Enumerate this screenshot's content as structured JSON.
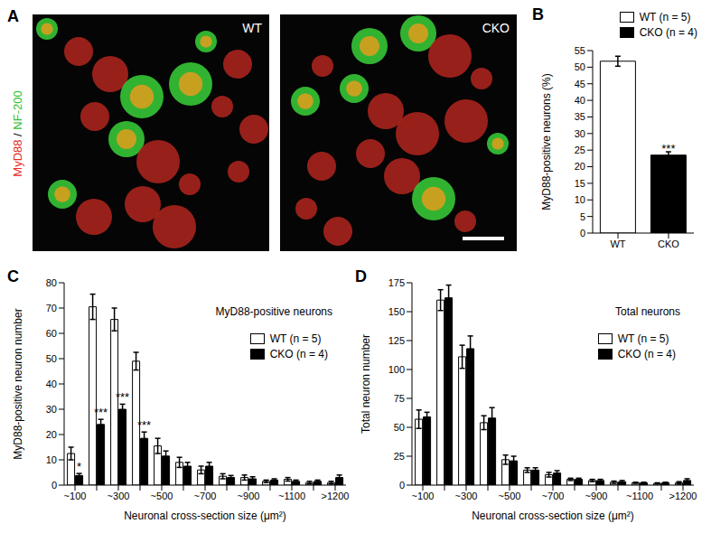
{
  "image_panel": {
    "panel": "A",
    "images": [
      "WT",
      "CKO"
    ],
    "stain_label": {
      "parts": [
        "MyD88",
        " / ",
        "NF-200"
      ],
      "colors": [
        "#e8261c",
        "#000000",
        "#2fbf2f"
      ]
    }
  },
  "chart_data": [
    {
      "panel": "B",
      "type": "bar",
      "categories": [
        "WT",
        "CKO"
      ],
      "stacked": true,
      "series": [
        {
          "name": "WT (n = 5)",
          "color": "#ffffff",
          "values": [
            51.8,
            null
          ],
          "errors": [
            1.5,
            null
          ]
        },
        {
          "name": "CKO (n = 4)",
          "color": "#000000",
          "values": [
            null,
            23.5
          ],
          "errors": [
            null,
            1.0
          ]
        }
      ],
      "ylabel": "MyD88-positive neurons (%)",
      "ylim": [
        0,
        55
      ],
      "yticks": [
        0,
        5,
        10,
        15,
        20,
        25,
        30,
        35,
        40,
        45,
        50,
        55
      ],
      "legend": "upper right",
      "annotations": [
        {
          "position": 1,
          "series": "CKO (n = 4)",
          "text": "***"
        }
      ]
    },
    {
      "panel": "C",
      "type": "bar",
      "title": "MyD88-positive neurons",
      "categories": [
        "~100",
        null,
        "~300",
        null,
        "~500",
        null,
        "~700",
        null,
        "~900",
        null,
        "~1100",
        null,
        ">1200"
      ],
      "series": [
        {
          "name": "WT (n = 5)",
          "color": "#ffffff",
          "values": [
            12.5,
            70.5,
            65.5,
            49,
            15.5,
            9,
            6,
            3.5,
            3,
            1.5,
            2.3,
            1,
            1
          ],
          "errors": [
            2.5,
            5,
            4.5,
            3.5,
            3,
            2,
            1.5,
            1,
            1,
            0.5,
            0.7,
            0.5,
            0.5
          ]
        },
        {
          "name": "CKO (n = 4)",
          "color": "#000000",
          "values": [
            3.8,
            24,
            30,
            18.5,
            11.5,
            7.5,
            7.5,
            3,
            2.5,
            2,
            1.5,
            1.5,
            3
          ],
          "errors": [
            0.8,
            2,
            2,
            2.5,
            2,
            1.5,
            1.5,
            0.8,
            0.8,
            0.5,
            0.5,
            0.5,
            1
          ]
        }
      ],
      "xlabel": "Neuronal cross-section size (μm²)",
      "ylabel": "MyD88-positive neuron number",
      "ylim": [
        0,
        80
      ],
      "yticks": [
        0,
        10,
        20,
        30,
        40,
        50,
        60,
        70,
        80
      ],
      "legend": "upper right",
      "annotations": [
        {
          "position": 0,
          "series": "CKO (n = 4)",
          "text": "*"
        },
        {
          "position": 1,
          "series": "CKO (n = 4)",
          "text": "***"
        },
        {
          "position": 2,
          "series": "CKO (n = 4)",
          "text": "***"
        },
        {
          "position": 3,
          "series": "CKO (n = 4)",
          "text": "***"
        }
      ]
    },
    {
      "panel": "D",
      "type": "bar",
      "title": "Total neurons",
      "categories": [
        "~100",
        null,
        "~300",
        null,
        "~500",
        null,
        "~700",
        null,
        "~900",
        null,
        "~1100",
        null,
        ">1200"
      ],
      "series": [
        {
          "name": "WT (n = 5)",
          "color": "#ffffff",
          "values": [
            57,
            160,
            111,
            54,
            22,
            13,
            9,
            5,
            4,
            2.5,
            2,
            1.5,
            2
          ],
          "errors": [
            8,
            9,
            10,
            6,
            4,
            2,
            2,
            1,
            1,
            1,
            0.5,
            0.5,
            1
          ]
        },
        {
          "name": "CKO (n = 4)",
          "color": "#000000",
          "values": [
            59,
            162,
            118,
            58,
            21,
            13,
            10.5,
            5,
            4,
            3,
            2,
            2,
            4
          ],
          "errors": [
            4,
            11,
            11,
            9,
            4,
            2,
            2,
            1,
            1,
            1,
            0.5,
            0.5,
            1.5
          ]
        }
      ],
      "xlabel": "Neuronal cross-section size (μm²)",
      "ylabel": "Total neuron number",
      "ylim": [
        0,
        175
      ],
      "yticks": [
        0,
        25,
        50,
        75,
        100,
        125,
        150,
        175
      ],
      "legend": "upper right"
    }
  ]
}
